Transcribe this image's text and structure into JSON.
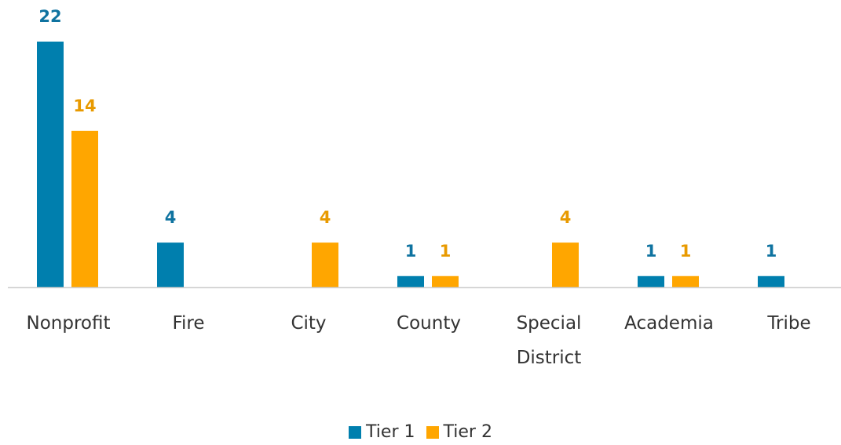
{
  "chart_data": {
    "type": "bar",
    "categories": [
      "Nonprofit",
      "Fire",
      "City",
      "County",
      "Special District",
      "Academia",
      "Tribe"
    ],
    "series": [
      {
        "name": "Tier 1",
        "color": "#007fae",
        "values": [
          22,
          4,
          null,
          1,
          null,
          1,
          1
        ]
      },
      {
        "name": "Tier 2",
        "color": "#ffa600",
        "values": [
          14,
          null,
          4,
          1,
          4,
          1,
          null
        ]
      }
    ],
    "legend": "bottom"
  }
}
